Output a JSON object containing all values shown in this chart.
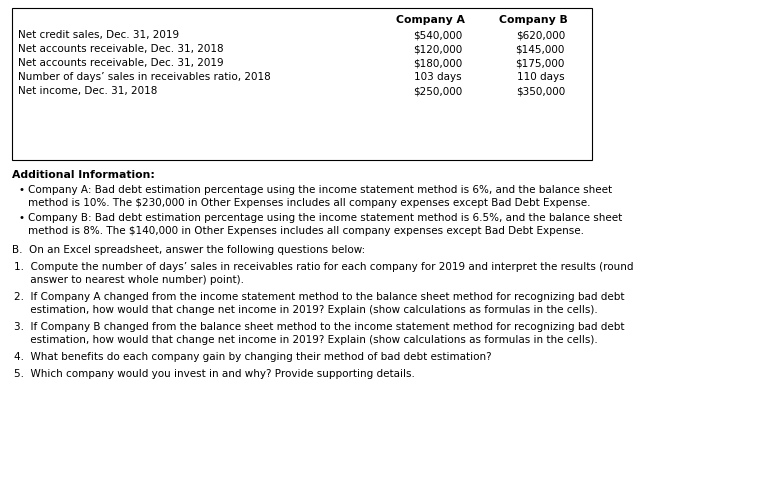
{
  "table_rows": [
    [
      "Net credit sales, Dec. 31, 2019",
      "$540,000",
      "$620,000"
    ],
    [
      "Net accounts receivable, Dec. 31, 2018",
      "$120,000",
      "$145,000"
    ],
    [
      "Net accounts receivable, Dec. 31, 2019",
      "$180,000",
      "$175,000"
    ],
    [
      "Number of days’ sales in receivables ratio, 2018",
      "103 days",
      "110 days"
    ],
    [
      "Net income, Dec. 31, 2018",
      "$250,000",
      "$350,000"
    ]
  ],
  "col_a_header": "Company A",
  "col_b_header": "Company B",
  "additional_info_header": "Additional Information:",
  "bullet1_line1": "Company A: Bad debt estimation percentage using the income statement method is 6%, and the balance sheet",
  "bullet1_line2": "method is 10%. The $230,000 in Other Expenses includes all company expenses except Bad Debt Expense.",
  "bullet2_line1": "Company B: Bad debt estimation percentage using the income statement method is 6.5%, and the balance sheet",
  "bullet2_line2": "method is 8%. The $140,000 in Other Expenses includes all company expenses except Bad Debt Expense.",
  "section_b": "B.  On an Excel spreadsheet, answer the following questions below:",
  "q1_line1": "1.  Compute the number of days’ sales in receivables ratio for each company for 2019 and interpret the results (round",
  "q1_line2": "     answer to nearest whole number) point).",
  "q2_line1": "2.  If Company A changed from the income statement method to the balance sheet method for recognizing bad debt",
  "q2_line2": "     estimation, how would that change net income in 2019? Explain (show calculations as formulas in the cells).",
  "q3_line1": "3.  If Company B changed from the balance sheet method to the income statement method for recognizing bad debt",
  "q3_line2": "     estimation, how would that change net income in 2019? Explain (show calculations as formulas in the cells).",
  "q4": "4.  What benefits do each company gain by changing their method of bad debt estimation?",
  "q5": "5.  Which company would you invest in and why? Provide supporting details.",
  "bg_color": "#ffffff",
  "text_color": "#000000",
  "border_color": "#000000",
  "font_size": 7.5,
  "bold_font_size": 7.8
}
